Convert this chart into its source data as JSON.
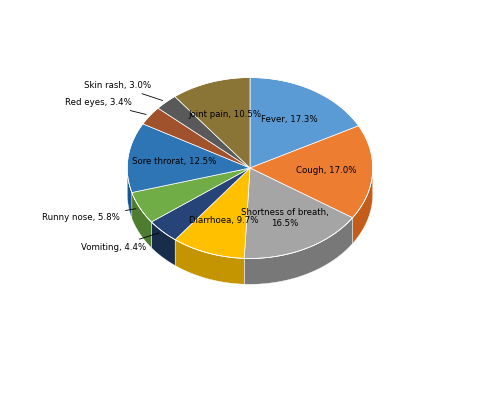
{
  "labels": [
    "Fever",
    "Cough",
    "Shortness of breath",
    "Diarrhoea",
    "Vomiting",
    "Runny nose",
    "Sore throrat",
    "Red eyes",
    "Skin rash",
    "Joint pain"
  ],
  "values": [
    17.3,
    17.0,
    16.5,
    9.7,
    4.4,
    5.8,
    12.5,
    3.4,
    3.0,
    10.5
  ],
  "colors": [
    "#5B9BD5",
    "#ED7D31",
    "#A5A5A5",
    "#FFC000",
    "#264478",
    "#70AD47",
    "#2E75B6",
    "#A0522D",
    "#595959",
    "#8B7536"
  ],
  "dark_colors": [
    "#3A6FA8",
    "#C45D1A",
    "#787878",
    "#C49500",
    "#182D4A",
    "#4E7D2F",
    "#1B5490",
    "#6B3410",
    "#3A3A3A",
    "#5C4D1E"
  ],
  "autopct_labels": [
    "Fever, 17.3%",
    "Cough, 17.0%",
    "Shortness of breath,\n16.5%",
    "Diarrhoea, 9.7%",
    "Vomiting, 4.4%",
    "Runny nose, 5.8%",
    "Sore throrat, 12.5%",
    "Red eyes, 3.4%",
    "Skin rash, 3.0%",
    "Joint pain, 10.5%"
  ],
  "legend_labels": [
    "Fever",
    "Cough",
    "Shortness of breath",
    "Diarrhoea",
    "Vomiting",
    "Runny nose",
    "Sore throrat",
    "Red eyes",
    "Skin rash",
    "Joint pain"
  ],
  "startangle": 90,
  "depth": 0.08,
  "figsize": [
    5.0,
    3.94
  ],
  "dpi": 100
}
